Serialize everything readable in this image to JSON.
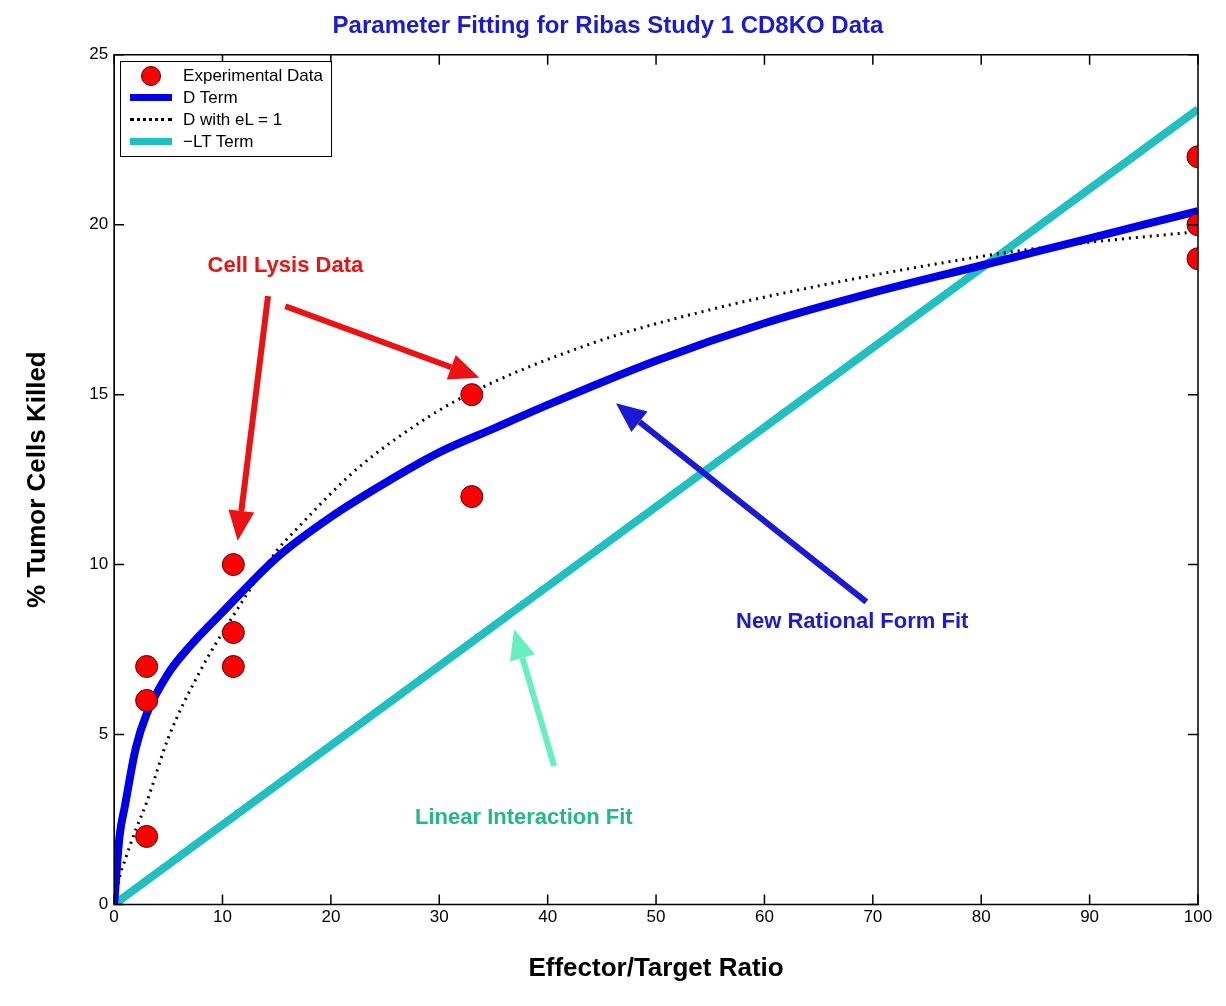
{
  "chart_data": {
    "type": "scatter",
    "title": "Parameter Fitting for Ribas Study 1 CD8KO Data",
    "xlabel": "Effector/Target Ratio",
    "ylabel": "% Tumor Cells Killed",
    "xlim": [
      0,
      100
    ],
    "xticks": [
      0,
      10,
      20,
      30,
      40,
      50,
      60,
      70,
      80,
      90,
      100
    ],
    "ylim": [
      0,
      25
    ],
    "yticks": [
      0,
      5,
      10,
      15,
      20,
      25
    ],
    "grid": false,
    "legend": "top left",
    "series": [
      {
        "name": "Experimental Data",
        "type": "scatter",
        "marker": "circle",
        "color": "#ff0000",
        "x": [
          3,
          3,
          3,
          11,
          11,
          11,
          33,
          33,
          100,
          100,
          100
        ],
        "values": [
          7,
          6,
          2,
          10,
          8,
          7,
          15,
          12,
          22,
          20,
          19
        ]
      },
      {
        "name": "D Term",
        "type": "line",
        "marker": "none",
        "line_style": "solid",
        "color": "#0000e6",
        "x": [
          0,
          0.5,
          1,
          2,
          3,
          5,
          7,
          10,
          15,
          20,
          25,
          30,
          35,
          40,
          50,
          60,
          70,
          80,
          90,
          100
        ],
        "values": [
          0,
          2.0,
          2.9,
          4.6,
          5.6,
          6.8,
          7.6,
          8.6,
          10.2,
          11.4,
          12.4,
          13.3,
          14.0,
          14.7,
          16.0,
          17.1,
          18.0,
          18.8,
          19.6,
          20.4
        ]
      },
      {
        "name": "D with eL = 1",
        "type": "line",
        "marker": "none",
        "line_style": "dotted",
        "color": "#000000",
        "x": [
          0,
          0.5,
          1,
          2,
          3,
          5,
          8,
          11,
          15,
          17,
          22,
          26,
          32,
          44,
          55,
          65,
          75,
          85,
          100
        ],
        "values": [
          0,
          0.8,
          1.3,
          2.2,
          3.0,
          4.9,
          6.9,
          8.5,
          10.4,
          11.1,
          12.7,
          13.7,
          14.9,
          16.5,
          17.5,
          18.2,
          18.8,
          19.3,
          19.8
        ]
      },
      {
        "name": "−LT Term",
        "type": "line",
        "marker": "none",
        "line_style": "solid",
        "color": "#20c0c0",
        "x": [
          0,
          100
        ],
        "values": [
          0,
          23.4
        ]
      }
    ],
    "annotations": [
      "Cell Lysis Data",
      "New Rational Form Fit",
      "Linear Interaction Fit"
    ]
  }
}
